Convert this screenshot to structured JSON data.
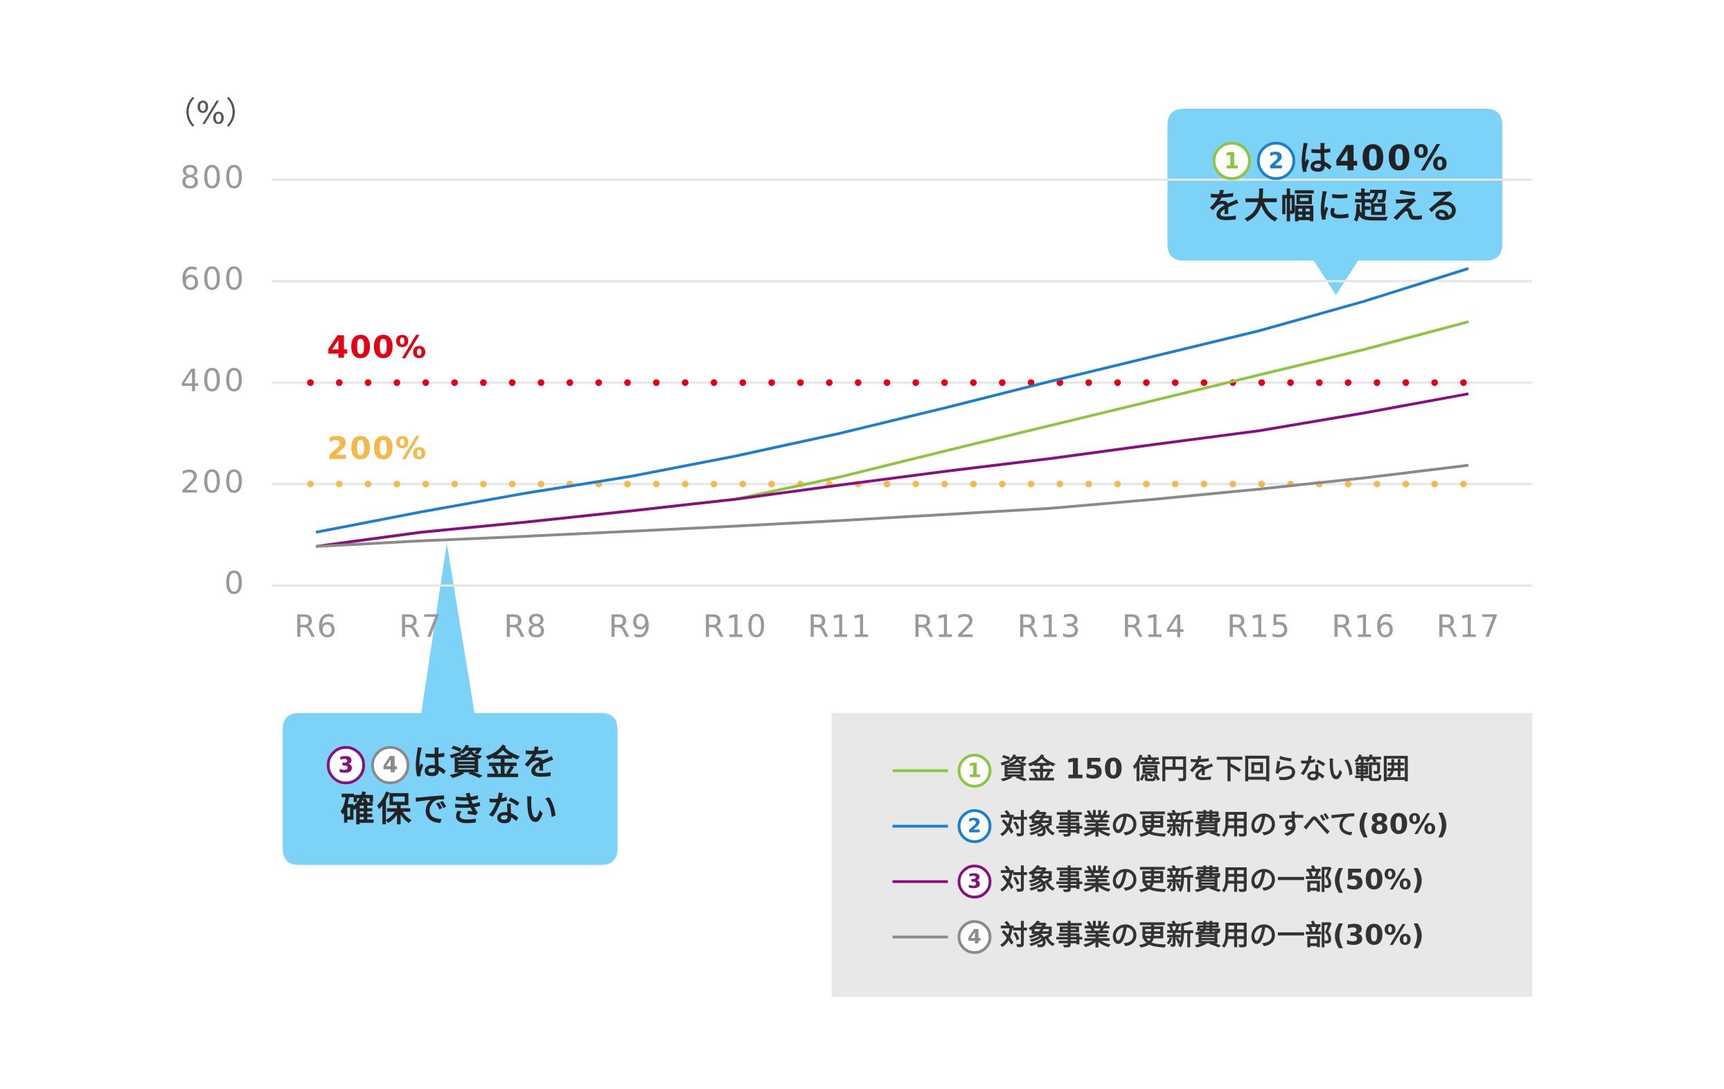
{
  "chart_data": {
    "type": "line",
    "y_axis_label": "（%）",
    "categories": [
      "R6",
      "R7",
      "R8",
      "R9",
      "R10",
      "R11",
      "R12",
      "R13",
      "R14",
      "R15",
      "R16",
      "R17"
    ],
    "ylim": [
      0,
      800
    ],
    "yticks": [
      0,
      200,
      400,
      600,
      800
    ],
    "grid": true,
    "series": [
      {
        "badge": "1",
        "name": "資金 150 億円を下回らない範囲",
        "color": "#8cc63f",
        "values": [
          77,
          105,
          125,
          147,
          170,
          214,
          265,
          315,
          365,
          415,
          465,
          520
        ]
      },
      {
        "badge": "2",
        "name": "対象事業の更新費用のすべて(80%)",
        "color": "#1a7fce",
        "values": [
          105,
          145,
          182,
          215,
          255,
          300,
          350,
          402,
          452,
          502,
          560,
          625
        ]
      },
      {
        "badge": "3",
        "name": "対象事業の更新費用の一部(50%)",
        "color": "#8b0e7f",
        "values": [
          77,
          105,
          125,
          147,
          170,
          198,
          225,
          250,
          278,
          305,
          340,
          378
        ]
      },
      {
        "badge": "4",
        "name": "対象事業の更新費用の一部(30%)",
        "color": "#8a8a8a",
        "values": [
          77,
          88,
          97,
          107,
          117,
          128,
          140,
          152,
          170,
          190,
          212,
          237
        ]
      }
    ],
    "reference_lines": [
      {
        "value": 400,
        "label": "400%",
        "color": "#e60012"
      },
      {
        "value": 200,
        "label": "200%",
        "color": "#f7b84a"
      }
    ],
    "callouts": [
      {
        "badges": [
          {
            "label": "1",
            "color": "#8cc63f"
          },
          {
            "label": "2",
            "color": "#1a7fce"
          }
        ],
        "lines": [
          "は400%",
          "を大幅に超える"
        ]
      },
      {
        "badges": [
          {
            "label": "3",
            "color": "#8b0e7f"
          },
          {
            "label": "4",
            "color": "#8a8a8a"
          }
        ],
        "lines": [
          "は資金を",
          "確保できない"
        ]
      }
    ]
  }
}
